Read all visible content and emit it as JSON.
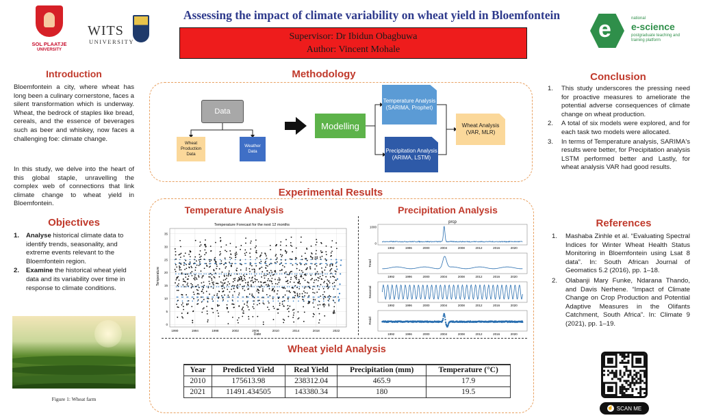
{
  "header": {
    "title": "Assessing the impact of climate variability on wheat yield in Bloemfontein",
    "supervisor": "Supervisor: Dr Ibidun Obagbuwa",
    "author": "Author: Vincent Mohale",
    "logo_left_line1": "SOL PLAATJE",
    "logo_left_line2": "UNIVERSITY",
    "logo_mid_line1": "WITS",
    "logo_mid_line2": "UNIVERSITY",
    "logo_right_line1": "national",
    "logo_right_line2": "e-science",
    "logo_right_line3": "postgraduate teaching and training platform"
  },
  "introduction": {
    "heading": "Introduction",
    "p1": "Bloemfontein a city, where wheat has long been a culinary cornerstone, faces a silent transformation which is underway. Wheat, the bedrock of staples like bread, cereals, and the essence of beverages such as beer and whiskey, now faces a challenging foe: climate change.",
    "p2": "In this study, we delve into the heart of this global staple, unravelling the complex web of connections that link climate change to wheat yield in Bloemfontein."
  },
  "objectives": {
    "heading": "Objectives",
    "items": [
      {
        "num": "1.",
        "bold": "Analyse",
        "text": " historical climate data to identify trends, seasonality, and extreme events relevant to the Bloemfontein region."
      },
      {
        "num": "2.",
        "bold": "Examine",
        "text": " the historical wheat yield data and its variability over time in response to climate conditions."
      }
    ]
  },
  "figure_caption": "Figure 1: Wheat farm",
  "methodology": {
    "heading": "Methodology",
    "data": "Data",
    "wheat_production": "Wheat Production Data",
    "weather": "Weather Data",
    "modelling": "Modelling",
    "temperature": "Temperature Analysis (SARIMA, Prophet)",
    "precipitation": "Precipitation Analysis (ARIMA, LSTM)",
    "wheat_analysis": "Wheat Analysis (VAR, MLR)"
  },
  "experimental": {
    "heading": "Experimental Results",
    "temp_heading": "Temperature Analysis",
    "prec_heading": "Precipitation Analysis",
    "wheat_heading": "Wheat yield Analysis"
  },
  "chart_data": [
    {
      "type": "scatter",
      "title": "Temperature Forecast for the next 12 months",
      "xlabel": "Date",
      "ylabel": "Temperature",
      "xlim": [
        1989,
        2024
      ],
      "ylim": [
        -1,
        37
      ],
      "xticks": [
        "1990",
        "1994",
        "1998",
        "2002",
        "2006",
        "2010",
        "2014",
        "2018",
        "2022"
      ],
      "yticks": [
        0,
        5,
        10,
        15,
        20,
        25,
        30,
        35
      ],
      "series": [
        {
          "values_description_min": 0,
          "values_description_max": 34,
          "color": "#111111"
        },
        {
          "color": "#3a7ebf"
        }
      ],
      "grid": true
    },
    {
      "type": "line",
      "panels": [
        {
          "label": "prcp",
          "yticks": [
            0,
            1000
          ],
          "color": "#2a6fb0"
        },
        {
          "label": "Trend",
          "color": "#2a6fb0"
        },
        {
          "label": "Seasonal",
          "color": "#2a6fb0"
        },
        {
          "label": "Resid",
          "color": "#2a6fb0"
        }
      ],
      "xticks": [
        "1992",
        "1996",
        "2000",
        "2004",
        "2008",
        "2012",
        "2016",
        "2020"
      ],
      "xlim": [
        1989,
        2023
      ]
    }
  ],
  "wheat_table": {
    "headers": [
      "Year",
      "Predicted Yield",
      "Real Yield",
      "Precipitation (mm)",
      "Temperature (°C)"
    ],
    "rows": [
      [
        "2010",
        "175613.98",
        "238312.04",
        "465.9",
        "17.9"
      ],
      [
        "2021",
        "11491.434505",
        "143380.34",
        "180",
        "19.5"
      ]
    ]
  },
  "conclusion": {
    "heading": "Conclusion",
    "items": [
      {
        "num": "1.",
        "text": "This study underscores the pressing need for proactive measures to ameliorate the potential adverse consequences of climate change on wheat production."
      },
      {
        "num": "2.",
        "text": "A total of six models were explored, and for each task two models were allocated."
      },
      {
        "num": "3.",
        "text": "In terms of Temperature analysis, SARIMA's results were better, for Precipitation analysis LSTM performed better and Lastly, for wheat analysis VAR had good results."
      }
    ]
  },
  "references": {
    "heading": "References",
    "items": [
      {
        "num": "1.",
        "text": "Mashaba Zinhle et al. “Evaluating Spectral Indices for Winter Wheat Health Status Monitoring in Bloemfontein using Lsat 8 data”. In: South African Journal of Geomatics 5.2 (2016), pp. 1–18."
      },
      {
        "num": "2.",
        "text": "Olabanji Mary Funke, Ndarana Thando, and Davis Nerhene. “Impact of Climate Change on Crop Production and Potential Adaptive Measures in the Olifants Catchment, South Africa”. In: Climate 9 (2021), pp. 1–19."
      }
    ]
  },
  "scan_label": "SCAN ME",
  "colors": {
    "accent": "#c0392b",
    "title": "#2e3a8c",
    "banner": "#ee1c1c",
    "dashed_box": "#e8a060"
  }
}
